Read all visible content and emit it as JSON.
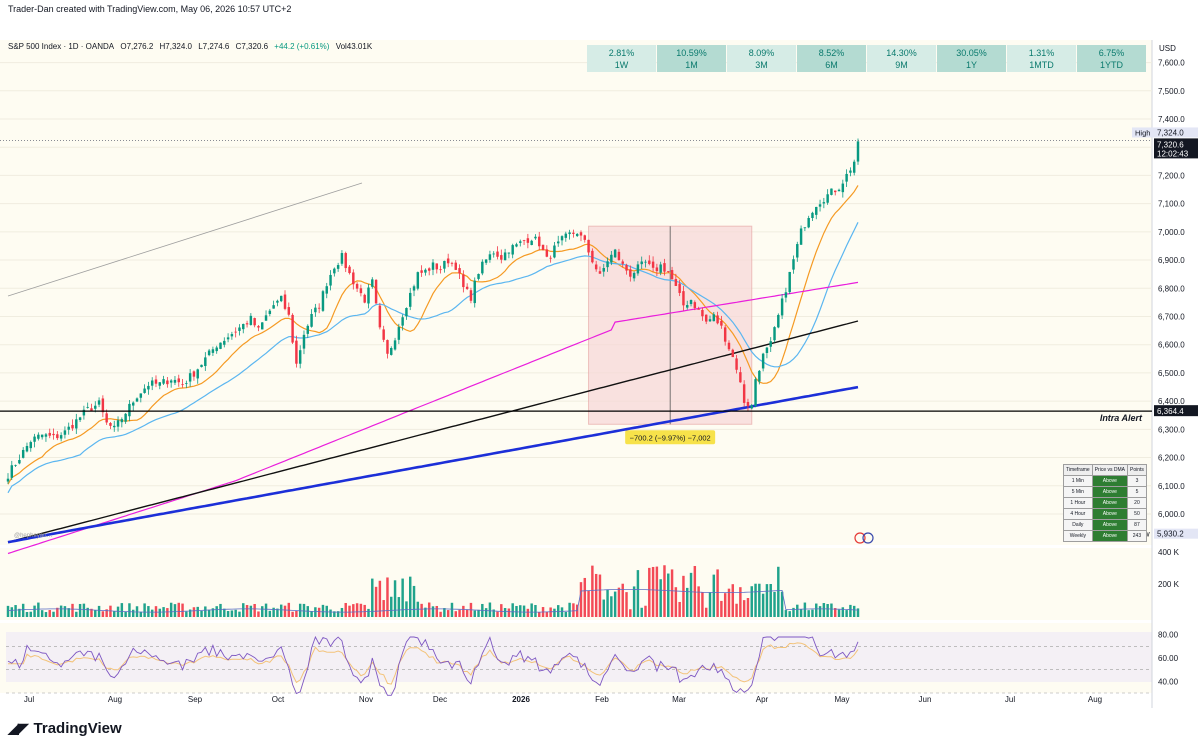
{
  "header": {
    "caption": "Trader-Dan created with TradingView.com, May 06, 2026 10:57 UTC+2"
  },
  "legend": {
    "symbol": "S&P 500 Index · 1D · OANDA",
    "open": "O7,276.2",
    "high": "H7,324.0",
    "low": "L7,274.6",
    "close": "C7,320.6",
    "change": "+44.2 (+0.61%)",
    "volume": "Vol43.01K"
  },
  "performance": [
    {
      "value": "2.81%",
      "period": "1W"
    },
    {
      "value": "10.59%",
      "period": "1M"
    },
    {
      "value": "8.09%",
      "period": "3M"
    },
    {
      "value": "8.52%",
      "period": "6M"
    },
    {
      "value": "14.30%",
      "period": "9M"
    },
    {
      "value": "30.05%",
      "period": "1Y"
    },
    {
      "value": "1.31%",
      "period": "1MTD"
    },
    {
      "value": "6.75%",
      "period": "1YTD"
    }
  ],
  "colors": {
    "up": "#089981",
    "down": "#f23645",
    "ema_orange": "#f59a23",
    "ema_lightblue": "#5bb6f0",
    "ma_magenta": "#e91edc",
    "ma_black": "#111111",
    "ma_blue": "#1c2fd8",
    "rsi_line": "#7e57c2",
    "rsi_ma": "#f3c37a"
  },
  "price_axis": {
    "currency": "USD",
    "ticks": [
      "7,600.0",
      "7,500.0",
      "7,400.0",
      "7,300.0",
      "7,200.0",
      "7,100.0",
      "7,000.0",
      "6,900.0",
      "6,800.0",
      "6,700.0",
      "6,600.0",
      "6,500.0",
      "6,400.0",
      "6,300.0",
      "6,200.0",
      "6,100.0",
      "6,000.0"
    ],
    "high_label": "High",
    "high_value": "7,324.0",
    "last_value": "7,320.6",
    "countdown": "12:02:43",
    "alert_value": "6,364.4",
    "alert_label": "Intra Alert",
    "low_label": "Low",
    "low_value": "5,930.2"
  },
  "volume_axis": {
    "ticks": [
      "400 K",
      "200 K"
    ]
  },
  "rsi_axis": {
    "ticks": [
      "80.00",
      "60.00",
      "40.00"
    ]
  },
  "time_axis": [
    "Jul",
    "Aug",
    "Sep",
    "Oct",
    "Nov",
    "Dec",
    "2026",
    "Feb",
    "Mar",
    "Apr",
    "May",
    "Jun",
    "Jul",
    "Aug"
  ],
  "measure_label": "−700.2 (−9.97%) −7,002",
  "watermark": "@hepheyan…",
  "trend_table": {
    "headers": [
      "Timeframe",
      "Price vs DMA",
      "Points"
    ],
    "rows": [
      [
        "1 Min",
        "Above",
        "3"
      ],
      [
        "5 Min",
        "Above",
        "5"
      ],
      [
        "1 Hour",
        "Above",
        "20"
      ],
      [
        "4 Hour",
        "Above",
        "50"
      ],
      [
        "Daily",
        "Above",
        "87"
      ],
      [
        "Weekly",
        "Above",
        "243"
      ]
    ]
  },
  "brand": "TradingView",
  "chart_data": {
    "type": "candlestick",
    "title": "S&P 500 Index · 1D · OANDA",
    "ylim": [
      5890,
      7680
    ],
    "reference_lines": [
      {
        "label": "Intra Alert",
        "value": 6364.4
      },
      {
        "label": "High",
        "value": 7324.0
      }
    ],
    "price_path": [
      [
        0,
        6140
      ],
      [
        3,
        6200
      ],
      [
        6,
        6260
      ],
      [
        9,
        6280
      ],
      [
        12,
        6270
      ],
      [
        15,
        6290
      ],
      [
        18,
        6330
      ],
      [
        21,
        6370
      ],
      [
        24,
        6390
      ],
      [
        26,
        6320
      ],
      [
        28,
        6300
      ],
      [
        31,
        6360
      ],
      [
        34,
        6420
      ],
      [
        37,
        6460
      ],
      [
        40,
        6460
      ],
      [
        43,
        6480
      ],
      [
        46,
        6460
      ],
      [
        49,
        6500
      ],
      [
        52,
        6550
      ],
      [
        55,
        6600
      ],
      [
        58,
        6630
      ],
      [
        61,
        6660
      ],
      [
        64,
        6690
      ],
      [
        66,
        6650
      ],
      [
        68,
        6700
      ],
      [
        70,
        6740
      ],
      [
        72,
        6760
      ],
      [
        74,
        6700
      ],
      [
        76,
        6530
      ],
      [
        78,
        6640
      ],
      [
        80,
        6700
      ],
      [
        82,
        6740
      ],
      [
        84,
        6820
      ],
      [
        86,
        6880
      ],
      [
        88,
        6910
      ],
      [
        90,
        6850
      ],
      [
        92,
        6800
      ],
      [
        94,
        6760
      ],
      [
        96,
        6820
      ],
      [
        98,
        6650
      ],
      [
        100,
        6560
      ],
      [
        102,
        6630
      ],
      [
        104,
        6710
      ],
      [
        106,
        6780
      ],
      [
        108,
        6850
      ],
      [
        110,
        6860
      ],
      [
        112,
        6880
      ],
      [
        114,
        6870
      ],
      [
        116,
        6900
      ],
      [
        118,
        6880
      ],
      [
        120,
        6800
      ],
      [
        122,
        6770
      ],
      [
        124,
        6860
      ],
      [
        126,
        6900
      ],
      [
        128,
        6930
      ],
      [
        130,
        6910
      ],
      [
        132,
        6940
      ],
      [
        134,
        6950
      ],
      [
        136,
        6970
      ],
      [
        138,
        6980
      ],
      [
        140,
        6960
      ],
      [
        142,
        6900
      ],
      [
        144,
        6940
      ],
      [
        146,
        6970
      ],
      [
        148,
        6990
      ],
      [
        150,
        7000
      ],
      [
        152,
        6960
      ],
      [
        154,
        6900
      ],
      [
        156,
        6840
      ],
      [
        158,
        6900
      ],
      [
        160,
        6930
      ],
      [
        162,
        6880
      ],
      [
        164,
        6850
      ],
      [
        166,
        6870
      ],
      [
        168,
        6890
      ],
      [
        170,
        6860
      ],
      [
        172,
        6880
      ],
      [
        174,
        6860
      ],
      [
        176,
        6800
      ],
      [
        178,
        6740
      ],
      [
        180,
        6760
      ],
      [
        182,
        6720
      ],
      [
        184,
        6680
      ],
      [
        186,
        6700
      ],
      [
        188,
        6660
      ],
      [
        190,
        6590
      ],
      [
        192,
        6520
      ],
      [
        194,
        6400
      ],
      [
        196,
        6380
      ],
      [
        197,
        6480
      ],
      [
        199,
        6560
      ],
      [
        201,
        6600
      ],
      [
        203,
        6700
      ],
      [
        205,
        6800
      ],
      [
        207,
        6900
      ],
      [
        209,
        7000
      ],
      [
        211,
        7060
      ],
      [
        213,
        7100
      ],
      [
        215,
        7120
      ],
      [
        217,
        7140
      ],
      [
        219,
        7160
      ],
      [
        221,
        7200
      ],
      [
        223,
        7250
      ],
      [
        224,
        7320.6
      ]
    ],
    "measure": {
      "from_bar": 153,
      "to_bar": 196,
      "top": 7020,
      "bottom": 6318,
      "change": -700.2,
      "change_pct": -9.97
    }
  }
}
